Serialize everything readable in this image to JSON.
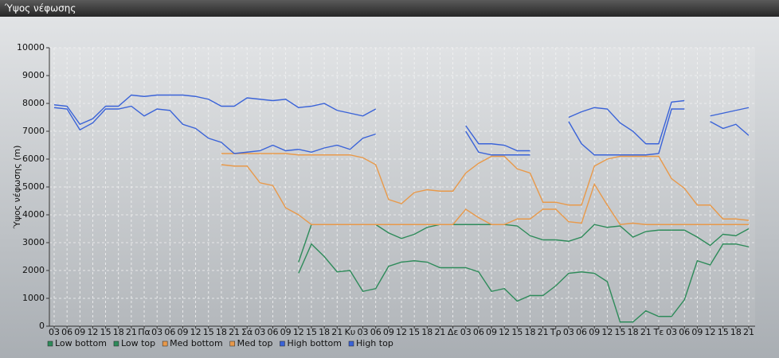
{
  "chart_data": {
    "type": "line",
    "title": "Ύψος νέφωσης",
    "y_label": "Ύψος νέφωσης (m)",
    "categories": [
      "03",
      "06",
      "09",
      "12",
      "15",
      "18",
      "21",
      "Πα",
      "03",
      "06",
      "09",
      "12",
      "15",
      "18",
      "21",
      "Σά",
      "03",
      "06",
      "09",
      "12",
      "15",
      "18",
      "21",
      "Κυ",
      "03",
      "06",
      "09",
      "12",
      "15",
      "18",
      "21",
      "Δε",
      "03",
      "06",
      "09",
      "12",
      "15",
      "18",
      "21",
      "Τρ",
      "03",
      "06",
      "09",
      "12",
      "15",
      "18",
      "21",
      "Τε",
      "03",
      "06",
      "09",
      "12",
      "15",
      "18",
      "21"
    ],
    "ylim": [
      0,
      10000
    ],
    "yticks": [
      0,
      1000,
      2000,
      3000,
      4000,
      5000,
      6000,
      7000,
      8000,
      9000,
      10000
    ],
    "grid": true,
    "series": [
      {
        "name": "Low bottom",
        "color": "#2e8b5a",
        "values": [
          null,
          null,
          null,
          null,
          null,
          null,
          null,
          null,
          null,
          null,
          null,
          null,
          null,
          null,
          null,
          null,
          null,
          null,
          null,
          1900,
          2950,
          2500,
          1950,
          2000,
          1250,
          1350,
          2150,
          2300,
          2350,
          2300,
          2100,
          2100,
          2100,
          1950,
          1250,
          1350,
          900,
          1100,
          1100,
          1450,
          1900,
          1950,
          1900,
          1600,
          150,
          150,
          550,
          350,
          350,
          950,
          2350,
          2200,
          2950,
          2950,
          2850
        ]
      },
      {
        "name": "Low top",
        "color": "#2e8b5a",
        "values": [
          null,
          null,
          null,
          null,
          null,
          null,
          null,
          null,
          null,
          null,
          null,
          null,
          null,
          null,
          null,
          null,
          null,
          null,
          null,
          2300,
          3650,
          3650,
          3650,
          3650,
          3650,
          3650,
          3350,
          3150,
          3300,
          3550,
          3650,
          3650,
          3650,
          3650,
          3650,
          3650,
          3600,
          3250,
          3100,
          3100,
          3050,
          3200,
          3650,
          3550,
          3600,
          3200,
          3400,
          3450,
          3450,
          3450,
          3200,
          2900,
          3300,
          3250,
          3500
        ]
      },
      {
        "name": "Med bottom",
        "color": "#e8994a",
        "values": [
          null,
          null,
          null,
          null,
          null,
          null,
          null,
          null,
          null,
          null,
          null,
          null,
          null,
          5800,
          5750,
          5750,
          5150,
          5050,
          4250,
          4000,
          3650,
          3650,
          3650,
          3650,
          3650,
          3650,
          3650,
          3650,
          3650,
          3650,
          3650,
          3650,
          4200,
          3900,
          3650,
          3650,
          3850,
          3850,
          4200,
          4200,
          3750,
          3700,
          5100,
          4350,
          3650,
          3700,
          3650,
          3650,
          3650,
          3650,
          3650,
          3650,
          3650,
          3650,
          3650
        ]
      },
      {
        "name": "Med top",
        "color": "#e8994a",
        "values": [
          null,
          null,
          null,
          null,
          null,
          null,
          null,
          null,
          null,
          null,
          null,
          null,
          null,
          6200,
          6200,
          6200,
          6200,
          6200,
          6200,
          6150,
          6150,
          6150,
          6150,
          6150,
          6050,
          5800,
          4550,
          4400,
          4800,
          4900,
          4850,
          4850,
          5500,
          5850,
          6100,
          6100,
          5650,
          5500,
          4450,
          4450,
          4350,
          4350,
          5750,
          6000,
          6100,
          6100,
          6100,
          6100,
          5300,
          4950,
          4350,
          4350,
          3850,
          3850,
          3800
        ]
      },
      {
        "name": "High bottom",
        "color": "#3a63d8",
        "values": [
          7850,
          7800,
          7050,
          7300,
          7800,
          7800,
          7900,
          7550,
          7800,
          7750,
          7250,
          7100,
          6750,
          6600,
          6200,
          6250,
          6300,
          6500,
          6300,
          6350,
          6250,
          6400,
          6500,
          6350,
          6750,
          6900,
          null,
          null,
          null,
          null,
          null,
          null,
          7000,
          6250,
          6150,
          6150,
          6150,
          6150,
          null,
          null,
          7350,
          6550,
          6150,
          6150,
          6150,
          6150,
          6150,
          6200,
          7800,
          7800,
          null,
          7350,
          7100,
          7250,
          6850
        ]
      },
      {
        "name": "High top",
        "color": "#3a63d8",
        "values": [
          7950,
          7900,
          7250,
          7450,
          7900,
          7900,
          8300,
          8250,
          8300,
          8300,
          8300,
          8250,
          8150,
          7900,
          7900,
          8200,
          8150,
          8100,
          8150,
          7850,
          7900,
          8000,
          7750,
          7650,
          7550,
          7800,
          null,
          null,
          null,
          null,
          null,
          null,
          7200,
          6550,
          6550,
          6500,
          6300,
          6300,
          null,
          null,
          7500,
          7700,
          7850,
          7800,
          7300,
          7000,
          6550,
          6550,
          8050,
          8100,
          null,
          7550,
          7650,
          7750,
          7850
        ]
      }
    ]
  }
}
